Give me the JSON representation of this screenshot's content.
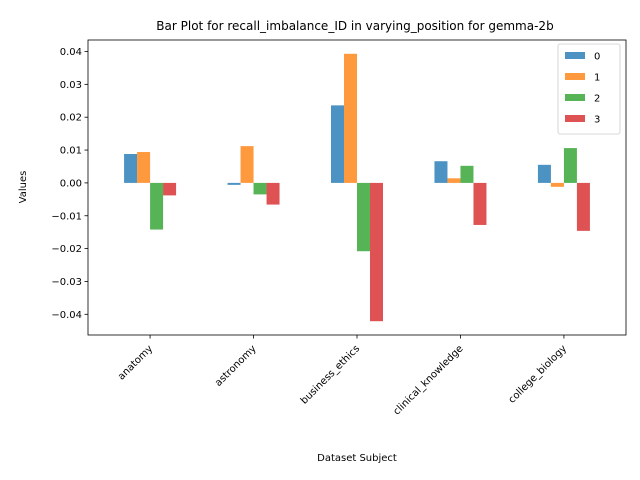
{
  "chart_data": {
    "type": "bar",
    "title": "Bar Plot for recall_imbalance_ID in varying_position for gemma-2b",
    "xlabel": "Dataset Subject",
    "ylabel": "Values",
    "categories": [
      "anatomy",
      "astronomy",
      "business_ethics",
      "clinical_knowledge",
      "college_biology"
    ],
    "series": [
      {
        "name": "0",
        "color": "#1f77b4",
        "values": [
          0.0088,
          -0.0006,
          0.0236,
          0.0066,
          0.0055
        ]
      },
      {
        "name": "1",
        "color": "#ff7f0e",
        "values": [
          0.0094,
          0.0112,
          0.0393,
          0.0014,
          -0.0012
        ]
      },
      {
        "name": "2",
        "color": "#2ca02c",
        "values": [
          -0.0142,
          -0.0035,
          -0.0208,
          0.0052,
          0.0106
        ]
      },
      {
        "name": "3",
        "color": "#d62728",
        "values": [
          -0.0038,
          -0.0066,
          -0.0421,
          -0.0128,
          -0.0146
        ]
      }
    ],
    "ylim": [
      -0.0463,
      0.0435
    ],
    "yticks": [
      -0.04,
      -0.03,
      -0.02,
      -0.01,
      0.0,
      0.01,
      0.02,
      0.03,
      0.04
    ],
    "ytick_labels": [
      "−0.04",
      "−0.03",
      "−0.02",
      "−0.01",
      "0.00",
      "0.01",
      "0.02",
      "0.03",
      "0.04"
    ],
    "legend_position": "top-right",
    "grid": false
  }
}
